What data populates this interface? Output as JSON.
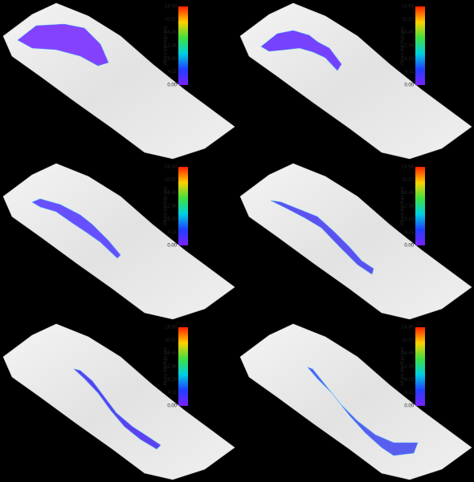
{
  "panels": [
    {
      "colorbar": {
        "label": "Altura del flujo (m)",
        "ticks": [
          "24.69",
          "20.57",
          "16.46",
          "12.34",
          "8.23",
          "4.11",
          "0.00"
        ]
      }
    },
    {
      "colorbar": {
        "label": "Altura del flujo (m)",
        "ticks": [
          "24.69",
          "20.57",
          "16.46",
          "12.34",
          "8.23",
          "4.11",
          "0.00"
        ]
      }
    },
    {
      "colorbar": {
        "label": "Altura del flujo (m)",
        "ticks": [
          "24.69",
          "20.57",
          "16.46",
          "12.34",
          "8.23",
          "4.11",
          "0.00"
        ]
      }
    },
    {
      "colorbar": {
        "label": "Altura del flujo (m)",
        "ticks": [
          "24.69",
          "20.57",
          "16.46",
          "12.34",
          "8.23",
          "4.11",
          "0.00"
        ]
      }
    },
    {
      "colorbar": {
        "label": "Altura del flujo (m)",
        "ticks": [
          "24.69",
          "20.57",
          "16.46",
          "12.34",
          "8.23",
          "4.11",
          "0.00"
        ]
      }
    },
    {
      "colorbar": {
        "label": "Altura del flujo (m)",
        "ticks": [
          "24.69",
          "20.57",
          "16.46",
          "12.34",
          "8.23",
          "4.11",
          "0.00"
        ]
      }
    }
  ]
}
